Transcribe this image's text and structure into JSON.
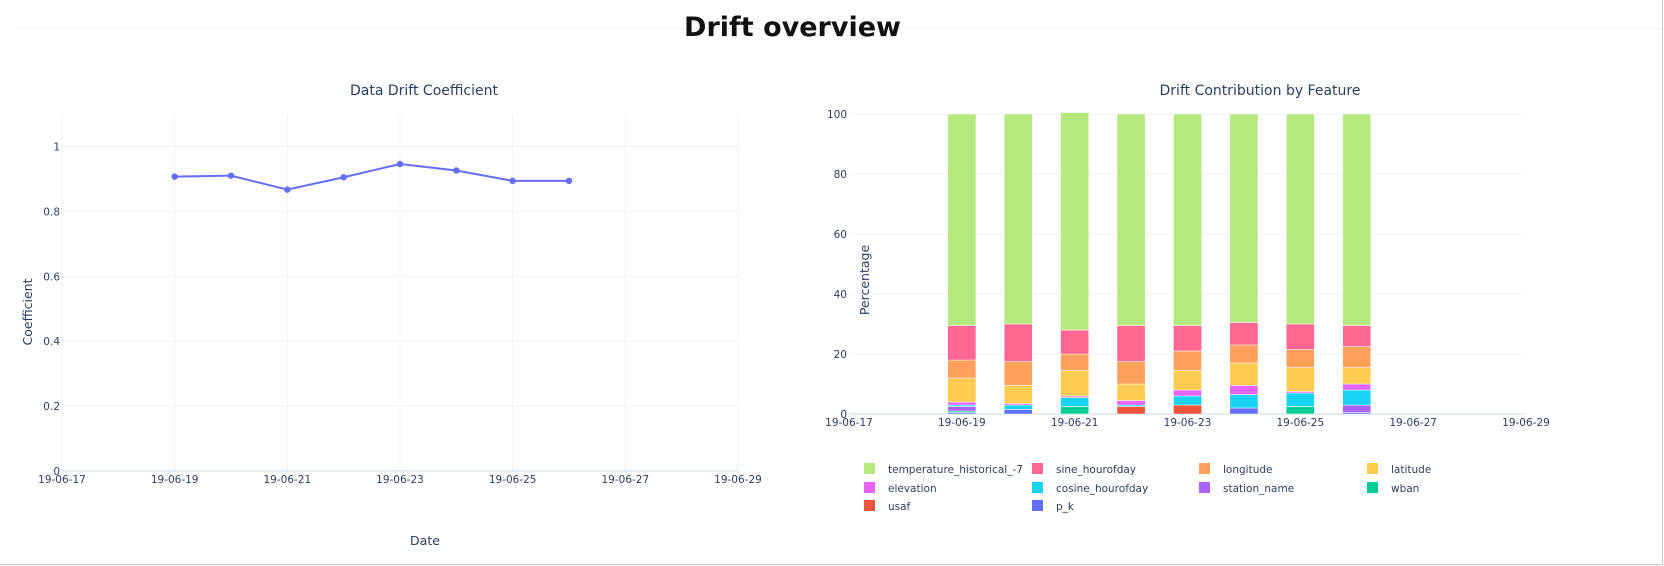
{
  "page": {
    "title": "Drift overview"
  },
  "chart_data": [
    {
      "type": "line",
      "title": "Data Drift Coefficient",
      "xlabel": "Date",
      "ylabel": "Coefficient",
      "xlim": [
        "19-06-17",
        "19-06-29"
      ],
      "ylim": [
        0,
        1.1
      ],
      "x_ticks": [
        "19-06-17",
        "19-06-19",
        "19-06-21",
        "19-06-23",
        "19-06-25",
        "19-06-27",
        "19-06-29"
      ],
      "y_ticks": [
        0,
        0.2,
        0.4,
        0.6,
        0.8,
        1
      ],
      "y_tick_labels": [
        "0",
        "0.2",
        "0.4",
        "0.6",
        "0.8",
        "1"
      ],
      "series": [
        {
          "color": "#636efa",
          "x": [
            "19-06-19",
            "19-06-20",
            "19-06-21",
            "19-06-22",
            "19-06-23",
            "19-06-24",
            "19-06-25",
            "19-06-26"
          ],
          "values": [
            0.907,
            0.91,
            0.867,
            0.905,
            0.946,
            0.926,
            0.894,
            0.894
          ]
        }
      ],
      "grid": true
    },
    {
      "type": "bar",
      "stacked": true,
      "title": "Drift Contribution by Feature",
      "xlabel": "",
      "ylabel": "Percentage",
      "xlim": [
        "19-06-17",
        "19-06-29"
      ],
      "ylim": [
        0,
        100
      ],
      "x_ticks": [
        "19-06-17",
        "19-06-19",
        "19-06-21",
        "19-06-23",
        "19-06-25",
        "19-06-27",
        "19-06-29"
      ],
      "y_ticks": [
        0,
        20,
        40,
        60,
        80,
        100
      ],
      "y_tick_labels": [
        "0",
        "20",
        "40",
        "60",
        "80",
        "100"
      ],
      "categories": [
        "19-06-19",
        "19-06-20",
        "19-06-21",
        "19-06-22",
        "19-06-23",
        "19-06-24",
        "19-06-25",
        "19-06-26"
      ],
      "series": [
        {
          "name": "p_k",
          "color": "#636efa",
          "values": [
            0.5,
            1.5,
            0,
            0,
            0,
            2,
            0,
            0.5
          ]
        },
        {
          "name": "usaf",
          "color": "#ef553b",
          "values": [
            0,
            0,
            0,
            2.5,
            3,
            0,
            0,
            0
          ]
        },
        {
          "name": "wban",
          "color": "#00cc96",
          "values": [
            0.5,
            0,
            2.5,
            0,
            0,
            0,
            2.5,
            0
          ]
        },
        {
          "name": "station_name",
          "color": "#ab63fa",
          "values": [
            1.5,
            0,
            0,
            0,
            0,
            0,
            0,
            2.5
          ]
        },
        {
          "name": "cosine_hourofday",
          "color": "#19d3f3",
          "values": [
            0.5,
            1.5,
            3,
            0.5,
            3,
            4.5,
            4.5,
            5
          ]
        },
        {
          "name": "elevation",
          "color": "#e763fa",
          "values": [
            1,
            0.5,
            0.5,
            1.5,
            2,
            3,
            0.5,
            2
          ]
        },
        {
          "name": "latitude",
          "color": "#fecb52",
          "values": [
            8,
            6,
            8.5,
            5.5,
            6.5,
            7.5,
            8,
            5.5
          ]
        },
        {
          "name": "longitude",
          "color": "#ffa15a",
          "values": [
            6,
            8,
            5.5,
            7.5,
            6.5,
            6,
            6,
            7
          ]
        },
        {
          "name": "sine_hourofday",
          "color": "#ff6692",
          "values": [
            11.5,
            12.5,
            8,
            12,
            8.5,
            7.5,
            8.5,
            7
          ]
        },
        {
          "name": "temperature_historical_-7",
          "color": "#b6e880",
          "values": [
            70.5,
            70,
            72.5,
            70.5,
            70.5,
            69.5,
            70,
            70.5
          ]
        }
      ],
      "legend_order": [
        "temperature_historical_-7",
        "sine_hourofday",
        "longitude",
        "latitude",
        "elevation",
        "cosine_hourofday",
        "station_name",
        "wban",
        "usaf",
        "p_k"
      ],
      "legend_position": "bottom",
      "grid": true
    }
  ]
}
